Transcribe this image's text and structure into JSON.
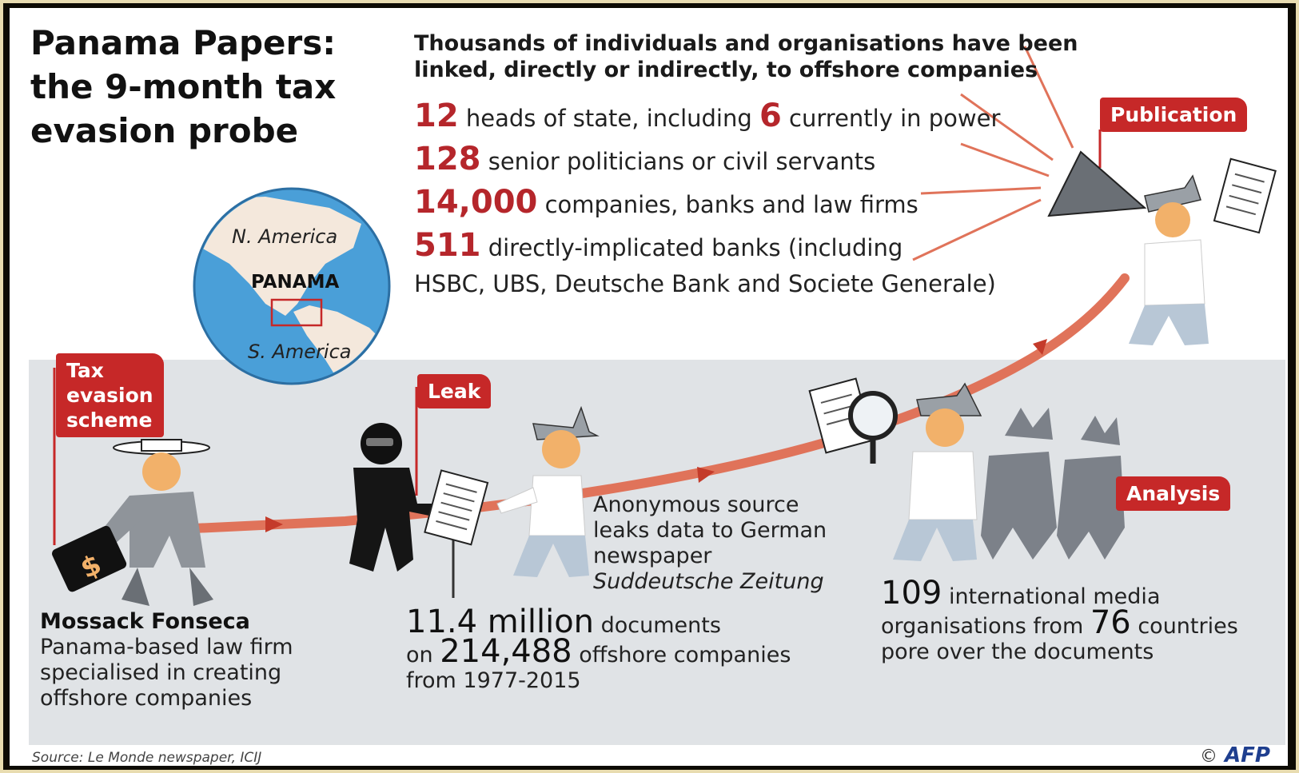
{
  "title": {
    "line1": "Panama Papers:",
    "line2": "the 9-month tax",
    "line3": "evasion probe"
  },
  "intro": {
    "line1": "Thousands of individuals and organisations have been",
    "line2": "linked, directly or indirectly, to offshore companies"
  },
  "stats": [
    {
      "num": "12",
      "text1": " heads of state, including ",
      "num2": "6",
      "text2": " currently in power"
    },
    {
      "num": "128",
      "text": " senior politicians or civil servants"
    },
    {
      "num": "14,000",
      "text": " companies, banks and law firms"
    },
    {
      "num": "511",
      "text": " directly-implicated banks (including",
      "line2": "HSBC, UBS, Deutsche Bank and Societe Generale)"
    }
  ],
  "map": {
    "north": "N. America",
    "country": "PANAMA",
    "south": "S. America"
  },
  "stages": {
    "tax": {
      "line1": "Tax",
      "line2": "evasion",
      "line3": "scheme"
    },
    "leak": "Leak",
    "analysis": "Analysis",
    "publication": "Publication"
  },
  "mossack": {
    "name": "Mossack Fonseca",
    "line1": "Panama-based law firm",
    "line2": "specialised in creating",
    "line3": "offshore companies"
  },
  "source_leak": {
    "line1": "Anonymous source",
    "line2": "leaks data to German",
    "line3": "newspaper",
    "line4": "Suddeutsche Zeitung"
  },
  "documents": {
    "num": "11.4 million",
    "text1": " documents",
    "pre": "on ",
    "num2": "214,488",
    "text2": " offshore companies",
    "line3": "from 1977-2015"
  },
  "media": {
    "num": "109",
    "text1": " international media",
    "pre": "organisations from ",
    "num2": "76",
    "text2": " countries",
    "line3": "pore over the documents"
  },
  "footer": {
    "source": "Source: Le Monde newspaper, ICIJ",
    "copyright": "©",
    "agency": "AFP"
  },
  "colors": {
    "accent": "#c62828",
    "band": "#e0e3e6",
    "ocean": "#4a9fd8",
    "path": "#e0735a"
  }
}
